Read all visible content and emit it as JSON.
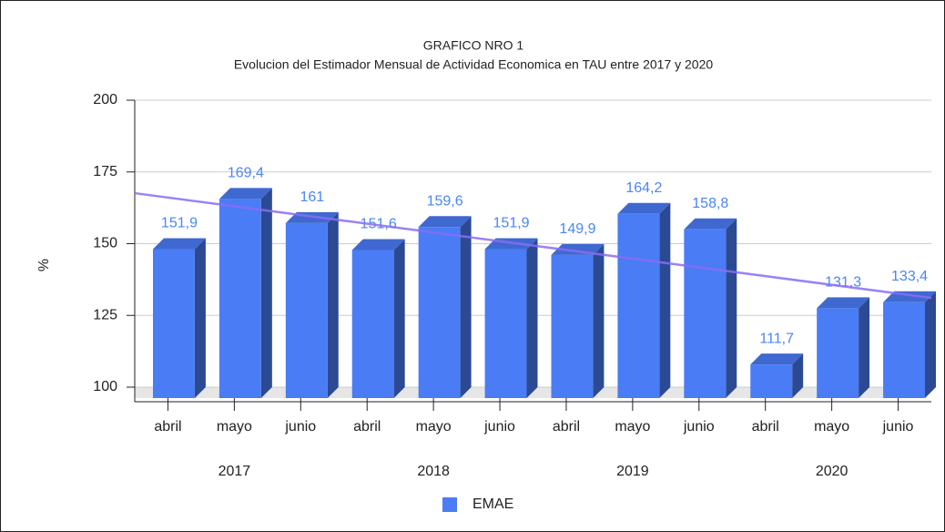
{
  "chart_data": {
    "type": "bar3d",
    "title": "GRAFICO NRO 1",
    "subtitle": "Evolucion del Estimador Mensual de Actividad Economica en TAU entre 2017 y 2020",
    "y_label": "%",
    "categories": [
      "abril",
      "mayo",
      "junio",
      "abril",
      "mayo",
      "junio",
      "abril",
      "mayo",
      "junio",
      "abril",
      "mayo",
      "junio"
    ],
    "groups": [
      "2017",
      "2018",
      "2019",
      "2020"
    ],
    "series": [
      {
        "name": "EMAE",
        "color": "#4a7cf5",
        "values": [
          151.9,
          169.4,
          161,
          151.6,
          159.6,
          151.9,
          149.9,
          164.2,
          158.8,
          111.7,
          131.3,
          133.4
        ],
        "value_labels": [
          "151,9",
          "169,4",
          "161",
          "151,6",
          "159,6",
          "151,9",
          "149,9",
          "164,2",
          "158,8",
          "111,7",
          "131,3",
          "133,4"
        ]
      }
    ],
    "trendline": {
      "color": "#8a6df5",
      "start": 167.6,
      "end": 131.1
    },
    "ylim": [
      100,
      200
    ],
    "yticks": [
      100,
      125,
      150,
      175,
      200
    ],
    "grid": true,
    "legend": "bottom"
  }
}
